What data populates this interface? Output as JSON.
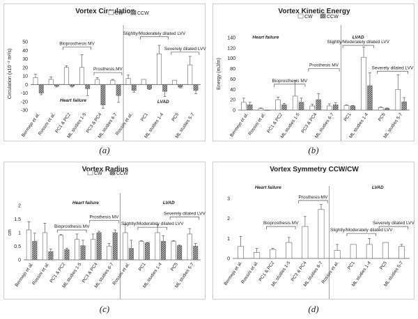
{
  "legend": {
    "cw": "CW",
    "ccw": "CCW"
  },
  "chart_data": [
    {
      "type": "bar",
      "caption": "(a)",
      "title": "Vortex Circulation",
      "ylabel": "Circulation (x10⁻³ m²/s)",
      "xlabel": "",
      "ylim": [
        -30,
        55
      ],
      "yticks": [
        -30,
        -20,
        -10,
        0,
        10,
        20,
        30,
        40,
        50
      ],
      "grid": false,
      "axis_position": "zero",
      "categories": [
        "Bermejo et al.",
        "Rossini et al.",
        "PC1 & PC2",
        "ML studies 1-5",
        "PC3 & PC4",
        "ML studies 6-7",
        "Rossini et al.",
        "PC1",
        "ML studies 1-4",
        "PC5",
        "ML studies 5-7"
      ],
      "series": [
        {
          "name": "CW",
          "values": [
            8,
            6,
            20,
            20,
            6,
            5,
            7,
            6,
            36,
            5,
            23
          ],
          "errors": [
            4,
            3,
            2,
            15,
            2,
            1,
            4,
            0,
            10,
            0,
            10
          ]
        },
        {
          "name": "CCW",
          "values": [
            -10,
            -2,
            -2,
            -5,
            -24,
            -13,
            -7,
            -5,
            -8,
            -3,
            -7
          ],
          "errors": [
            2,
            1,
            1,
            8,
            4,
            8,
            2,
            1,
            6,
            1,
            4
          ]
        }
      ],
      "annotations": [
        {
          "text": "Bioprosthesis MV",
          "from": 2,
          "to": 3,
          "value": 44
        },
        {
          "text": "Prosthesis MV",
          "from": 4,
          "to": 5,
          "value": 14
        },
        {
          "text": "Slightly/Moderately dilated LVV",
          "from": 7,
          "to": 8,
          "value": 56
        },
        {
          "text": "Severely dilated LVV",
          "from": 9,
          "to": 10,
          "value": 38
        }
      ],
      "groups": [
        {
          "text": "Heart failure",
          "value": -20
        },
        {
          "text": "LVAD",
          "value": -22
        }
      ]
    },
    {
      "type": "bar",
      "caption": "(b)",
      "title": "Vortex Kinetic Energy",
      "ylabel": "Energy (mJ/m)",
      "xlabel": "",
      "ylim": [
        0,
        140
      ],
      "yticks": [
        0,
        20,
        40,
        60,
        80,
        100,
        120,
        140
      ],
      "grid": false,
      "axis_position": "zero",
      "categories": [
        "Bermejo et al.",
        "Rossini et al.",
        "PC1 & PC2",
        "ML studies 1-5",
        "PC3 & PC4",
        "ML studies 6-7",
        "PC1",
        "ML studies 1-4",
        "PC5",
        "ML studies 5-7"
      ],
      "series": [
        {
          "name": "CW",
          "values": [
            15,
            3,
            20,
            27,
            8,
            8,
            9,
            102,
            5,
            40
          ],
          "errors": [
            8,
            1,
            5,
            30,
            3,
            4,
            1,
            20,
            1,
            28
          ]
        },
        {
          "name": "CCW",
          "values": [
            10,
            0,
            10,
            15,
            20,
            10,
            8,
            47,
            3,
            16
          ],
          "errors": [
            5,
            0,
            3,
            8,
            12,
            4,
            1,
            25,
            1,
            8
          ]
        }
      ],
      "annotations": [
        {
          "text": "Bioprosthesis MV",
          "from": 2,
          "to": 3,
          "value": 50
        },
        {
          "text": "Prosthesis MV",
          "from": 4,
          "to": 5,
          "value": 80
        },
        {
          "text": "Slightly/Moderately dilated LVV",
          "from": 6,
          "to": 7,
          "value": 125
        },
        {
          "text": "Severely dilated LVV",
          "from": 8,
          "to": 9,
          "value": 75
        }
      ],
      "groups": [
        {
          "text": "Heart failure",
          "value": 138
        },
        {
          "text": "LVAD",
          "value": 138
        }
      ]
    },
    {
      "type": "bar",
      "caption": "(c)",
      "title": "Vortex Radius",
      "ylabel": "cm",
      "xlabel": "",
      "ylim": [
        0,
        2
      ],
      "yticks": [
        0,
        0.5,
        1,
        1.5,
        2
      ],
      "grid": false,
      "axis_position": "zero",
      "categories": [
        "Bermejo et al.",
        "Rossini et al.",
        "PC1 & PC2",
        "ML studies 1-5",
        "PC3 & PC4",
        "ML studies 6-7",
        "Rossini et al.",
        "PC1",
        "ML studies 1-4",
        "PC5",
        "ML studies 5-7"
      ],
      "series": [
        {
          "name": "CW",
          "values": [
            1.1,
            1.0,
            0.9,
            0.75,
            0.75,
            0.5,
            1.0,
            0.68,
            1.0,
            0.68,
            0.95
          ],
          "errors": [
            0.3,
            0.35,
            0.03,
            0.2,
            0.2,
            0.1,
            0.3,
            0.02,
            0.3,
            0.02,
            0.2
          ]
        },
        {
          "name": "CCW",
          "values": [
            0.68,
            0.3,
            0.38,
            0.52,
            1.0,
            1.0,
            0.42,
            0.62,
            0.68,
            0.52,
            0.5
          ],
          "errors": [
            0.3,
            0.1,
            0.05,
            0.2,
            0.05,
            0.1,
            0.3,
            0.02,
            0.2,
            0.02,
            0.1
          ]
        }
      ],
      "annotations": [
        {
          "text": "Bioprosthesis MV",
          "from": 2,
          "to": 3,
          "value": 1.1
        },
        {
          "text": "Prosthesis MV",
          "from": 4,
          "to": 5,
          "value": 1.45
        },
        {
          "text": "Slightly/Moderately dilated LVV",
          "from": 7,
          "to": 8,
          "value": 1.2
        },
        {
          "text": "Severely dilated LVV",
          "from": 9,
          "to": 10,
          "value": 1.58
        }
      ],
      "groups": [
        {
          "text": "Heart failure",
          "value": 2.05
        },
        {
          "text": "LVAD",
          "value": 2.05
        }
      ]
    },
    {
      "type": "bar",
      "caption": "(d)",
      "title": "Vortex Symmetry CCW/CW",
      "ylabel": "",
      "xlabel": "",
      "ylim": [
        0,
        3
      ],
      "yticks": [
        0,
        1,
        2,
        3
      ],
      "grid": false,
      "axis_position": "zero",
      "categories": [
        "Bermejo et al.",
        "Rossini et al.",
        "PC1 & PC2",
        "ML studies 1-5",
        "PC3 & PC4",
        "ML studies 6-7",
        "Rossini et al.",
        "PC1",
        "ML studies 1-4",
        "PC5",
        "ML studies 5-7"
      ],
      "series": [
        {
          "name": "CCW/CW",
          "values": [
            0.6,
            0.3,
            0.45,
            0.8,
            1.6,
            2.45,
            0.4,
            0.7,
            0.7,
            0.8,
            0.6
          ],
          "errors": [
            0.5,
            0.2,
            0.05,
            0.25,
            0.5,
            0.25,
            0.3,
            0.0,
            0.3,
            0.0,
            0.1
          ]
        }
      ],
      "annotations": [
        {
          "text": "Bioprosthesis MV",
          "from": 2,
          "to": 3,
          "value": 1.6
        },
        {
          "text": "Prosthesis MV",
          "from": 4,
          "to": 5,
          "value": 2.9
        },
        {
          "text": "Slightly/Moderately dilated LVV",
          "from": 7,
          "to": 8,
          "value": 1.25
        },
        {
          "text": "Severely dilated LVV",
          "from": 9,
          "to": 10,
          "value": 1.6
        }
      ],
      "groups": [
        {
          "text": "Heart failure",
          "value": 3.5
        },
        {
          "text": "LVAD",
          "value": 3.5
        }
      ]
    }
  ]
}
